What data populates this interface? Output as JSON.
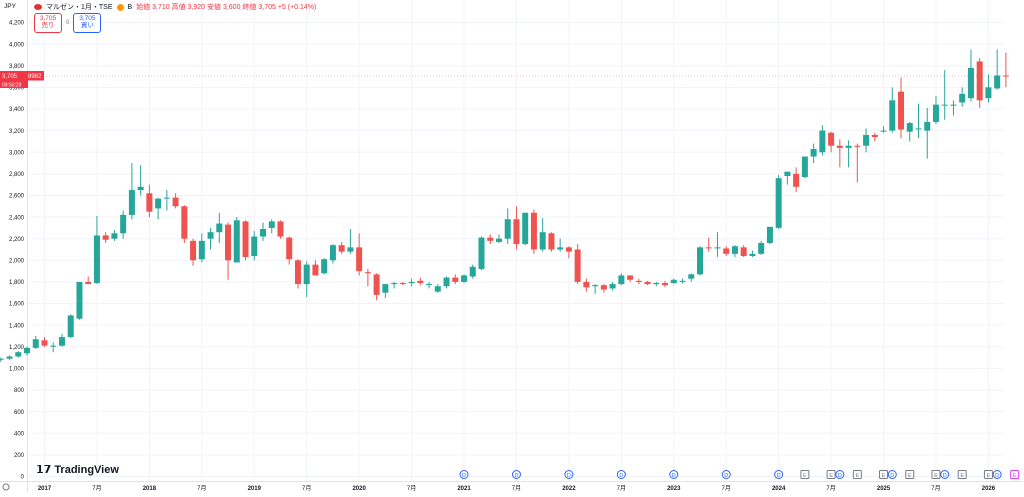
{
  "header": {
    "symbol": "マルゼン・1月・TSE",
    "badge": "B",
    "ohlc": "始値 3,710 高値 3,920 安値 3,600 終値 3,705 +5 (+0.14%)"
  },
  "currency": "JPY",
  "sell_button": {
    "price": "3,705",
    "label": "売り"
  },
  "spread": "0",
  "buy_button": {
    "price": "3,705",
    "label": "買い"
  },
  "price_tag": {
    "price": "3,705",
    "label": "9982",
    "countdown": "09:50:29"
  },
  "logo_text": "TradingView",
  "colors": {
    "up": "#26a69a",
    "down": "#ef5350",
    "grid": "#f0f3fa",
    "text": "#131722",
    "event_blue": "#2962ff",
    "event_gray": "#787b86",
    "event_pink": "#e040fb"
  },
  "chart_data": {
    "type": "candlestick",
    "interval": "monthly",
    "ylim": [
      0,
      4200
    ],
    "y_ticks": [
      0,
      200,
      400,
      600,
      800,
      1000,
      1200,
      1400,
      1600,
      1800,
      2000,
      2200,
      2400,
      2600,
      2800,
      3000,
      3200,
      3400,
      3600,
      3800,
      4000,
      4200
    ],
    "y_tick_labels": [
      "0",
      "200",
      "400",
      "600",
      "800",
      "1,000",
      "1,200",
      "1,400",
      "1,600",
      "1,800",
      "2,000",
      "2,200",
      "2,400",
      "2,600",
      "2,800",
      "3,000",
      "3,200",
      "3,400",
      "3,600",
      "3,800",
      "4,000",
      "4,200"
    ],
    "x_labels": [
      {
        "label": "2017",
        "month": "2017-01"
      },
      {
        "label": "7月",
        "month": "2017-07"
      },
      {
        "label": "2018",
        "month": "2018-01"
      },
      {
        "label": "7月",
        "month": "2018-07"
      },
      {
        "label": "2019",
        "month": "2019-01"
      },
      {
        "label": "7月",
        "month": "2019-07"
      },
      {
        "label": "2020",
        "month": "2020-01"
      },
      {
        "label": "7月",
        "month": "2020-07"
      },
      {
        "label": "2021",
        "month": "2021-01"
      },
      {
        "label": "7月",
        "month": "2021-07"
      },
      {
        "label": "2022",
        "month": "2022-01"
      },
      {
        "label": "7月",
        "month": "2022-07"
      },
      {
        "label": "2023",
        "month": "2023-01"
      },
      {
        "label": "7月",
        "month": "2023-07"
      },
      {
        "label": "2024",
        "month": "2024-01"
      },
      {
        "label": "7月",
        "month": "2024-07"
      },
      {
        "label": "2025",
        "month": "2025-01"
      },
      {
        "label": "7月",
        "month": "2025-07"
      },
      {
        "label": "2026",
        "month": "2026-01"
      }
    ],
    "candles": [
      {
        "t": "2016-08",
        "o": 1080,
        "h": 1100,
        "l": 1060,
        "c": 1090
      },
      {
        "t": "2016-09",
        "o": 1090,
        "h": 1120,
        "l": 1080,
        "c": 1110
      },
      {
        "t": "2016-10",
        "o": 1110,
        "h": 1160,
        "l": 1100,
        "c": 1150
      },
      {
        "t": "2016-11",
        "o": 1140,
        "h": 1200,
        "l": 1120,
        "c": 1190
      },
      {
        "t": "2016-12",
        "o": 1190,
        "h": 1300,
        "l": 1180,
        "c": 1270
      },
      {
        "t": "2017-01",
        "o": 1260,
        "h": 1290,
        "l": 1200,
        "c": 1210
      },
      {
        "t": "2017-02",
        "o": 1210,
        "h": 1240,
        "l": 1150,
        "c": 1210
      },
      {
        "t": "2017-03",
        "o": 1210,
        "h": 1320,
        "l": 1200,
        "c": 1290
      },
      {
        "t": "2017-04",
        "o": 1290,
        "h": 1500,
        "l": 1280,
        "c": 1490
      },
      {
        "t": "2017-05",
        "o": 1460,
        "h": 1800,
        "l": 1450,
        "c": 1800
      },
      {
        "t": "2017-06",
        "o": 1800,
        "h": 1850,
        "l": 1780,
        "c": 1780
      },
      {
        "t": "2017-07",
        "o": 1790,
        "h": 2410,
        "l": 1780,
        "c": 2230
      },
      {
        "t": "2017-08",
        "o": 2230,
        "h": 2260,
        "l": 2160,
        "c": 2190
      },
      {
        "t": "2017-09",
        "o": 2200,
        "h": 2280,
        "l": 2180,
        "c": 2250
      },
      {
        "t": "2017-10",
        "o": 2250,
        "h": 2460,
        "l": 2200,
        "c": 2420
      },
      {
        "t": "2017-11",
        "o": 2420,
        "h": 2900,
        "l": 2380,
        "c": 2650
      },
      {
        "t": "2017-12",
        "o": 2650,
        "h": 2880,
        "l": 2600,
        "c": 2680
      },
      {
        "t": "2018-01",
        "o": 2620,
        "h": 2700,
        "l": 2400,
        "c": 2450
      },
      {
        "t": "2018-02",
        "o": 2480,
        "h": 2580,
        "l": 2380,
        "c": 2570
      },
      {
        "t": "2018-03",
        "o": 2580,
        "h": 2650,
        "l": 2460,
        "c": 2580
      },
      {
        "t": "2018-04",
        "o": 2580,
        "h": 2620,
        "l": 2480,
        "c": 2500
      },
      {
        "t": "2018-05",
        "o": 2500,
        "h": 2510,
        "l": 2160,
        "c": 2200
      },
      {
        "t": "2018-06",
        "o": 2180,
        "h": 2200,
        "l": 1950,
        "c": 2000
      },
      {
        "t": "2018-07",
        "o": 2010,
        "h": 2250,
        "l": 1980,
        "c": 2180
      },
      {
        "t": "2018-08",
        "o": 2200,
        "h": 2300,
        "l": 2100,
        "c": 2260
      },
      {
        "t": "2018-09",
        "o": 2260,
        "h": 2440,
        "l": 2160,
        "c": 2340
      },
      {
        "t": "2018-10",
        "o": 2330,
        "h": 2350,
        "l": 1820,
        "c": 2000
      },
      {
        "t": "2018-11",
        "o": 1980,
        "h": 2400,
        "l": 1980,
        "c": 2370
      },
      {
        "t": "2018-12",
        "o": 2360,
        "h": 2370,
        "l": 2000,
        "c": 2030
      },
      {
        "t": "2019-01",
        "o": 2040,
        "h": 2270,
        "l": 2000,
        "c": 2220
      },
      {
        "t": "2019-02",
        "o": 2220,
        "h": 2350,
        "l": 2180,
        "c": 2290
      },
      {
        "t": "2019-03",
        "o": 2300,
        "h": 2380,
        "l": 2250,
        "c": 2360
      },
      {
        "t": "2019-04",
        "o": 2360,
        "h": 2370,
        "l": 2200,
        "c": 2220
      },
      {
        "t": "2019-05",
        "o": 2210,
        "h": 2220,
        "l": 1960,
        "c": 2010
      },
      {
        "t": "2019-06",
        "o": 2000,
        "h": 2010,
        "l": 1740,
        "c": 1780
      },
      {
        "t": "2019-07",
        "o": 1780,
        "h": 1990,
        "l": 1660,
        "c": 1960
      },
      {
        "t": "2019-08",
        "o": 1960,
        "h": 2000,
        "l": 1860,
        "c": 1860
      },
      {
        "t": "2019-09",
        "o": 1880,
        "h": 2020,
        "l": 1870,
        "c": 2010
      },
      {
        "t": "2019-10",
        "o": 2000,
        "h": 2150,
        "l": 1970,
        "c": 2140
      },
      {
        "t": "2019-11",
        "o": 2140,
        "h": 2170,
        "l": 2060,
        "c": 2080
      },
      {
        "t": "2019-12",
        "o": 2080,
        "h": 2290,
        "l": 2060,
        "c": 2120
      },
      {
        "t": "2020-01",
        "o": 2120,
        "h": 2250,
        "l": 1860,
        "c": 1900
      },
      {
        "t": "2020-02",
        "o": 1890,
        "h": 1920,
        "l": 1760,
        "c": 1880
      },
      {
        "t": "2020-03",
        "o": 1870,
        "h": 1880,
        "l": 1630,
        "c": 1680
      },
      {
        "t": "2020-04",
        "o": 1700,
        "h": 1780,
        "l": 1650,
        "c": 1780
      },
      {
        "t": "2020-05",
        "o": 1780,
        "h": 1800,
        "l": 1740,
        "c": 1790
      },
      {
        "t": "2020-06",
        "o": 1790,
        "h": 1800,
        "l": 1770,
        "c": 1780
      },
      {
        "t": "2020-07",
        "o": 1790,
        "h": 1830,
        "l": 1760,
        "c": 1800
      },
      {
        "t": "2020-08",
        "o": 1810,
        "h": 1840,
        "l": 1770,
        "c": 1790
      },
      {
        "t": "2020-09",
        "o": 1780,
        "h": 1800,
        "l": 1740,
        "c": 1780
      },
      {
        "t": "2020-10",
        "o": 1710,
        "h": 1780,
        "l": 1700,
        "c": 1760
      },
      {
        "t": "2020-11",
        "o": 1760,
        "h": 1850,
        "l": 1740,
        "c": 1840
      },
      {
        "t": "2020-12",
        "o": 1840,
        "h": 1870,
        "l": 1780,
        "c": 1800
      },
      {
        "t": "2021-01",
        "o": 1800,
        "h": 1870,
        "l": 1790,
        "c": 1860
      },
      {
        "t": "2021-02",
        "o": 1850,
        "h": 1960,
        "l": 1830,
        "c": 1940
      },
      {
        "t": "2021-03",
        "o": 1920,
        "h": 2220,
        "l": 1910,
        "c": 2210
      },
      {
        "t": "2021-04",
        "o": 2210,
        "h": 2240,
        "l": 2150,
        "c": 2180
      },
      {
        "t": "2021-05",
        "o": 2170,
        "h": 2240,
        "l": 2160,
        "c": 2200
      },
      {
        "t": "2021-06",
        "o": 2200,
        "h": 2480,
        "l": 2150,
        "c": 2380
      },
      {
        "t": "2021-07",
        "o": 2380,
        "h": 2500,
        "l": 2100,
        "c": 2150
      },
      {
        "t": "2021-08",
        "o": 2150,
        "h": 2440,
        "l": 2140,
        "c": 2440
      },
      {
        "t": "2021-09",
        "o": 2440,
        "h": 2470,
        "l": 2060,
        "c": 2100
      },
      {
        "t": "2021-10",
        "o": 2100,
        "h": 2390,
        "l": 2080,
        "c": 2260
      },
      {
        "t": "2021-11",
        "o": 2250,
        "h": 2260,
        "l": 2080,
        "c": 2100
      },
      {
        "t": "2021-12",
        "o": 2100,
        "h": 2200,
        "l": 2080,
        "c": 2120
      },
      {
        "t": "2022-01",
        "o": 2120,
        "h": 2130,
        "l": 2020,
        "c": 2080
      },
      {
        "t": "2022-02",
        "o": 2100,
        "h": 2150,
        "l": 1780,
        "c": 1800
      },
      {
        "t": "2022-03",
        "o": 1800,
        "h": 1830,
        "l": 1710,
        "c": 1750
      },
      {
        "t": "2022-04",
        "o": 1760,
        "h": 1780,
        "l": 1690,
        "c": 1770
      },
      {
        "t": "2022-05",
        "o": 1770,
        "h": 1780,
        "l": 1700,
        "c": 1730
      },
      {
        "t": "2022-06",
        "o": 1740,
        "h": 1800,
        "l": 1720,
        "c": 1780
      },
      {
        "t": "2022-07",
        "o": 1780,
        "h": 1880,
        "l": 1770,
        "c": 1860
      },
      {
        "t": "2022-08",
        "o": 1860,
        "h": 1860,
        "l": 1800,
        "c": 1820
      },
      {
        "t": "2022-09",
        "o": 1810,
        "h": 1830,
        "l": 1780,
        "c": 1800
      },
      {
        "t": "2022-10",
        "o": 1800,
        "h": 1810,
        "l": 1770,
        "c": 1780
      },
      {
        "t": "2022-11",
        "o": 1780,
        "h": 1800,
        "l": 1760,
        "c": 1790
      },
      {
        "t": "2022-12",
        "o": 1790,
        "h": 1810,
        "l": 1750,
        "c": 1770
      },
      {
        "t": "2023-01",
        "o": 1790,
        "h": 1830,
        "l": 1780,
        "c": 1820
      },
      {
        "t": "2023-02",
        "o": 1800,
        "h": 1830,
        "l": 1790,
        "c": 1810
      },
      {
        "t": "2023-03",
        "o": 1830,
        "h": 1880,
        "l": 1800,
        "c": 1870
      },
      {
        "t": "2023-04",
        "o": 1870,
        "h": 2130,
        "l": 1860,
        "c": 2120
      },
      {
        "t": "2023-05",
        "o": 2120,
        "h": 2210,
        "l": 2080,
        "c": 2110
      },
      {
        "t": "2023-06",
        "o": 2110,
        "h": 2260,
        "l": 2030,
        "c": 2120
      },
      {
        "t": "2023-07",
        "o": 2110,
        "h": 2130,
        "l": 2040,
        "c": 2060
      },
      {
        "t": "2023-08",
        "o": 2060,
        "h": 2140,
        "l": 2030,
        "c": 2130
      },
      {
        "t": "2023-09",
        "o": 2120,
        "h": 2140,
        "l": 2030,
        "c": 2040
      },
      {
        "t": "2023-10",
        "o": 2040,
        "h": 2090,
        "l": 2030,
        "c": 2060
      },
      {
        "t": "2023-11",
        "o": 2060,
        "h": 2180,
        "l": 2050,
        "c": 2160
      },
      {
        "t": "2023-12",
        "o": 2160,
        "h": 2300,
        "l": 2150,
        "c": 2310
      },
      {
        "t": "2024-01",
        "o": 2300,
        "h": 2790,
        "l": 2290,
        "c": 2760
      },
      {
        "t": "2024-02",
        "o": 2780,
        "h": 2820,
        "l": 2700,
        "c": 2820
      },
      {
        "t": "2024-03",
        "o": 2800,
        "h": 2860,
        "l": 2630,
        "c": 2680
      },
      {
        "t": "2024-04",
        "o": 2770,
        "h": 2960,
        "l": 2760,
        "c": 2960
      },
      {
        "t": "2024-05",
        "o": 2960,
        "h": 3080,
        "l": 2900,
        "c": 3030
      },
      {
        "t": "2024-06",
        "o": 3000,
        "h": 3250,
        "l": 2970,
        "c": 3200
      },
      {
        "t": "2024-07",
        "o": 3180,
        "h": 3190,
        "l": 3000,
        "c": 3060
      },
      {
        "t": "2024-08",
        "o": 3060,
        "h": 3120,
        "l": 2860,
        "c": 3040
      },
      {
        "t": "2024-09",
        "o": 3040,
        "h": 3110,
        "l": 2860,
        "c": 3060
      },
      {
        "t": "2024-10",
        "o": 3060,
        "h": 3080,
        "l": 2720,
        "c": 3050
      },
      {
        "t": "2024-11",
        "o": 3060,
        "h": 3220,
        "l": 3000,
        "c": 3160
      },
      {
        "t": "2024-12",
        "o": 3160,
        "h": 3180,
        "l": 3100,
        "c": 3140
      },
      {
        "t": "2025-01",
        "o": 3200,
        "h": 3240,
        "l": 3180,
        "c": 3200
      },
      {
        "t": "2025-02",
        "o": 3200,
        "h": 3600,
        "l": 3180,
        "c": 3480
      },
      {
        "t": "2025-03",
        "o": 3560,
        "h": 3690,
        "l": 3130,
        "c": 3210
      },
      {
        "t": "2025-04",
        "o": 3190,
        "h": 3280,
        "l": 3100,
        "c": 3270
      },
      {
        "t": "2025-05",
        "o": 3220,
        "h": 3450,
        "l": 3130,
        "c": 3220
      },
      {
        "t": "2025-06",
        "o": 3200,
        "h": 3410,
        "l": 2940,
        "c": 3280
      },
      {
        "t": "2025-07",
        "o": 3280,
        "h": 3520,
        "l": 3260,
        "c": 3440
      },
      {
        "t": "2025-08",
        "o": 3440,
        "h": 3760,
        "l": 3300,
        "c": 3440
      },
      {
        "t": "2025-09",
        "o": 3440,
        "h": 3480,
        "l": 3340,
        "c": 3440
      },
      {
        "t": "2025-10",
        "o": 3460,
        "h": 3600,
        "l": 3420,
        "c": 3540
      },
      {
        "t": "2025-11",
        "o": 3500,
        "h": 3950,
        "l": 3470,
        "c": 3780
      },
      {
        "t": "2025-12",
        "o": 3840,
        "h": 3870,
        "l": 3410,
        "c": 3480
      },
      {
        "t": "2026-01",
        "o": 3500,
        "h": 3720,
        "l": 3460,
        "c": 3600
      },
      {
        "t": "2026-02",
        "o": 3590,
        "h": 3950,
        "l": 3580,
        "c": 3710
      },
      {
        "t": "2026-03",
        "o": 3710,
        "h": 3920,
        "l": 3600,
        "c": 3705
      }
    ],
    "events": [
      {
        "month": "2021-01",
        "type": "D"
      },
      {
        "month": "2021-07",
        "type": "D"
      },
      {
        "month": "2022-01",
        "type": "D"
      },
      {
        "month": "2022-07",
        "type": "D"
      },
      {
        "month": "2023-01",
        "type": "D"
      },
      {
        "month": "2023-07",
        "type": "D"
      },
      {
        "month": "2024-01",
        "type": "D"
      },
      {
        "month": "2024-04",
        "type": "E"
      },
      {
        "month": "2024-07",
        "type": "E"
      },
      {
        "month": "2024-08",
        "type": "D"
      },
      {
        "month": "2024-10",
        "type": "E"
      },
      {
        "month": "2025-01",
        "type": "E"
      },
      {
        "month": "2025-02",
        "type": "D"
      },
      {
        "month": "2025-04",
        "type": "E"
      },
      {
        "month": "2025-07",
        "type": "E"
      },
      {
        "month": "2025-08",
        "type": "D"
      },
      {
        "month": "2025-10",
        "type": "E"
      },
      {
        "month": "2026-01",
        "type": "E"
      },
      {
        "month": "2026-02",
        "type": "D"
      },
      {
        "month": "2026-04",
        "type": "E"
      }
    ]
  }
}
